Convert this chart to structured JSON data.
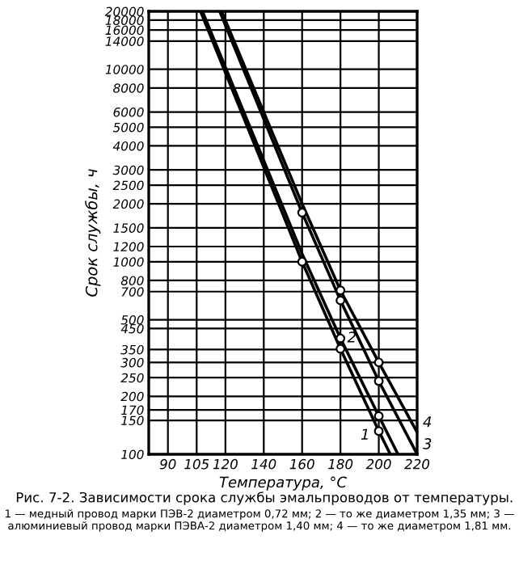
{
  "chart_data": {
    "type": "line",
    "xlabel": "Температура, °C",
    "ylabel": "Срок службы, ч",
    "series": [
      {
        "name": "1",
        "x": [
          107,
          160,
          180,
          200,
          206
        ],
        "values": [
          20000,
          1000,
          353,
          132,
          100
        ],
        "color": "#000000"
      },
      {
        "name": "2",
        "x": [
          108,
          160,
          180,
          200,
          210
        ],
        "values": [
          20000,
          1100,
          400,
          158,
          100
        ],
        "color": "#000000"
      },
      {
        "name": "3",
        "x": [
          117,
          160,
          180,
          200,
          220
        ],
        "values": [
          20000,
          1800,
          630,
          240,
          100
        ],
        "color": "#000000"
      },
      {
        "name": "4",
        "x": [
          118,
          160,
          180,
          200,
          220
        ],
        "values": [
          20000,
          2000,
          710,
          300,
          130
        ],
        "color": "#000000"
      },
      {
        "type": "scatter",
        "marker": "circle",
        "x": [
          160,
          180,
          200
        ],
        "values": [
          1000,
          353,
          132
        ],
        "color": "#000000"
      },
      {
        "type": "scatter",
        "marker": "circle",
        "x": [
          180,
          200
        ],
        "values": [
          400,
          158
        ],
        "color": "#000000"
      },
      {
        "type": "scatter",
        "marker": "circle",
        "x": [
          160,
          180,
          200
        ],
        "values": [
          1800,
          630,
          240
        ],
        "color": "#000000"
      },
      {
        "type": "scatter",
        "marker": "circle",
        "x": [
          180,
          200
        ],
        "values": [
          710,
          300
        ],
        "color": "#000000"
      }
    ],
    "log": "y",
    "xlim": [
      80,
      220
    ],
    "xticks": [
      90,
      105,
      120,
      140,
      160,
      180,
      200,
      220
    ],
    "ylim": [
      100,
      20000
    ],
    "yticks": [
      100,
      150,
      170,
      200,
      250,
      300,
      350,
      450,
      500,
      700,
      800,
      1000,
      1200,
      1500,
      2000,
      2500,
      3000,
      4000,
      5000,
      6000,
      8000,
      10000,
      14000,
      16000,
      18000,
      20000
    ],
    "grid": true,
    "annotations": [
      "Рис. 7-2. Зависимости срока службы эмальпроводов от температуры.",
      "1 — медный провод марки ПЭВ-2 диаметром 0,72 мм; 2 — то же диаметром 1,35 мм; 3 — алюминиевый провод марки ПЭВА-2 диаметром 1,40 мм; 4 — то же диаметром 1,81 мм."
    ]
  }
}
